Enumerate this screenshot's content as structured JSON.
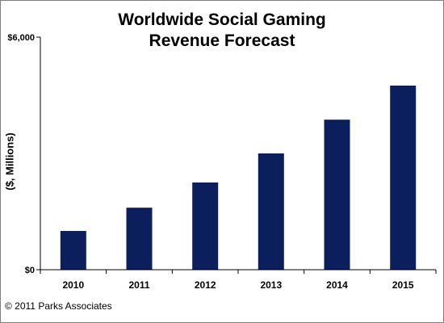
{
  "chart_data": {
    "type": "bar",
    "title": [
      "Worldwide Social Gaming",
      "Revenue Forecast"
    ],
    "ylabel": "($, Millions)",
    "xlabel": "",
    "categories": [
      "2010",
      "2011",
      "2012",
      "2013",
      "2014",
      "2015"
    ],
    "values": [
      1000,
      1600,
      2250,
      3000,
      3870,
      4750
    ],
    "ylim": [
      0,
      6000
    ],
    "y_tick_labels": [
      {
        "value": 0,
        "label": "$0"
      },
      {
        "value": 6000,
        "label": "$6,000"
      }
    ],
    "grid": false,
    "legend": "none",
    "colors": {
      "bar": "#0b1f5c",
      "axis": "#000000"
    }
  },
  "footer": "© 2011 Parks Associates"
}
